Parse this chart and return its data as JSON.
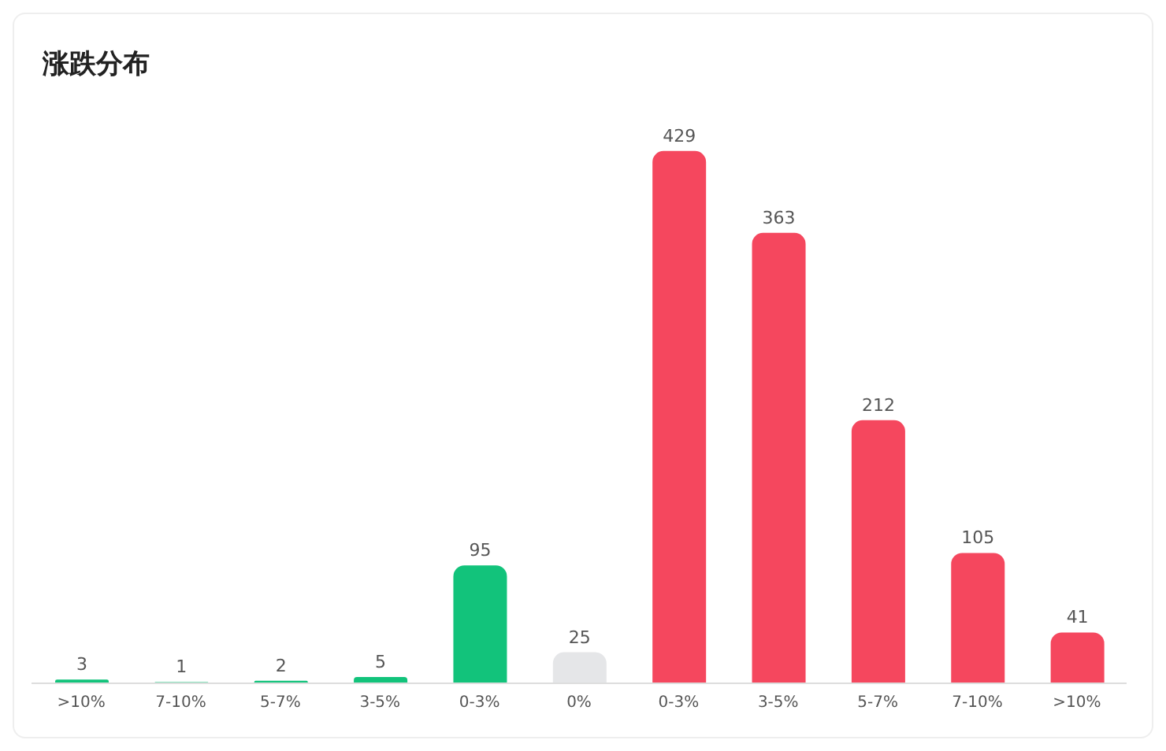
{
  "chart_data": {
    "type": "bar",
    "title": "涨跌分布",
    "categories": [
      ">10%",
      "7-10%",
      "5-7%",
      "3-5%",
      "0-3%",
      "0%",
      "0-3%",
      "3-5%",
      "5-7%",
      "7-10%",
      ">10%"
    ],
    "values": [
      3,
      1,
      2,
      5,
      95,
      25,
      429,
      363,
      212,
      105,
      41
    ],
    "colors": [
      "#12c37b",
      "#12c37b",
      "#12c37b",
      "#12c37b",
      "#12c37b",
      "#e5e6e8",
      "#f5475e",
      "#f5475e",
      "#f5475e",
      "#f5475e",
      "#f5475e"
    ],
    "tick_labels": "x",
    "data_labels": true
  }
}
